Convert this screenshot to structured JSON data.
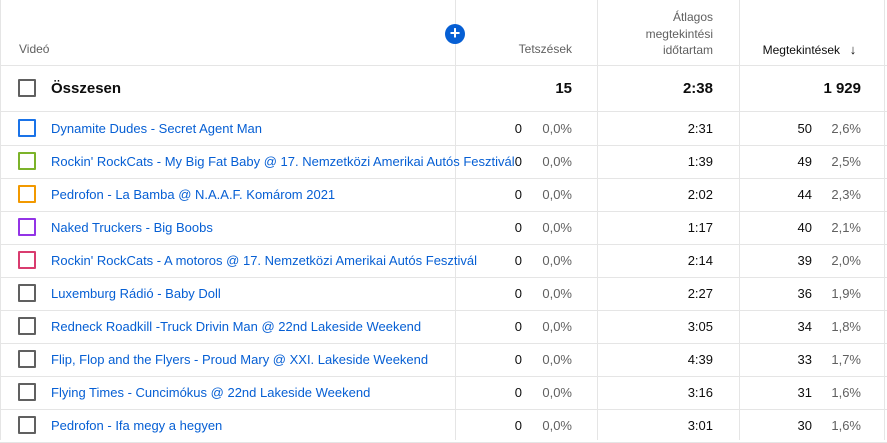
{
  "headers": {
    "video": "Videó",
    "likes": "Tetszések",
    "avg_line1": "Átlagos",
    "avg_line2": "megtekintési",
    "avg_line3": "időtartam",
    "views": "Megtekintések",
    "sort_arrow": "↓",
    "add_icon": "+"
  },
  "total": {
    "label": "Összesen",
    "likes": "15",
    "avg": "2:38",
    "views": "1 929"
  },
  "rows": [
    {
      "title": "Dynamite Dudes - Secret Agent Man",
      "likes": "0",
      "likes_pct": "0,0%",
      "avg": "2:31",
      "views": "50",
      "views_pct": "2,6%",
      "color": "#1a73e8"
    },
    {
      "title": "Rockin' RockCats - My Big Fat Baby @ 17. Nemzetközi Amerikai Autós Fesztivál",
      "likes": "0",
      "likes_pct": "0,0%",
      "avg": "1:39",
      "views": "49",
      "views_pct": "2,5%",
      "color": "#7cb32a"
    },
    {
      "title": "Pedrofon - La Bamba @ N.A.A.F. Komárom 2021",
      "likes": "0",
      "likes_pct": "0,0%",
      "avg": "2:02",
      "views": "44",
      "views_pct": "2,3%",
      "color": "#f29900"
    },
    {
      "title": "Naked Truckers - Big Boobs",
      "likes": "0",
      "likes_pct": "0,0%",
      "avg": "1:17",
      "views": "40",
      "views_pct": "2,1%",
      "color": "#9334e6"
    },
    {
      "title": "Rockin' RockCats - A motoros @ 17. Nemzetközi Amerikai Autós Fesztivál",
      "likes": "0",
      "likes_pct": "0,0%",
      "avg": "2:14",
      "views": "39",
      "views_pct": "2,0%",
      "color": "#d93c6f"
    },
    {
      "title": "Luxemburg Rádió - Baby Doll",
      "likes": "0",
      "likes_pct": "0,0%",
      "avg": "2:27",
      "views": "36",
      "views_pct": "1,9%",
      "color": "#606060"
    },
    {
      "title": "Redneck Roadkill -Truck Drivin Man @ 22nd Lakeside Weekend",
      "likes": "0",
      "likes_pct": "0,0%",
      "avg": "3:05",
      "views": "34",
      "views_pct": "1,8%",
      "color": "#606060"
    },
    {
      "title": "Flip, Flop and the Flyers - Proud Mary @ XXI. Lakeside Weekend",
      "likes": "0",
      "likes_pct": "0,0%",
      "avg": "4:39",
      "views": "33",
      "views_pct": "1,7%",
      "color": "#606060"
    },
    {
      "title": "Flying Times - Cuncimókus @ 22nd Lakeside Weekend",
      "likes": "0",
      "likes_pct": "0,0%",
      "avg": "3:16",
      "views": "31",
      "views_pct": "1,6%",
      "color": "#606060"
    },
    {
      "title": "Pedrofon - Ifa megy a hegyen",
      "likes": "0",
      "likes_pct": "0,0%",
      "avg": "3:01",
      "views": "30",
      "views_pct": "1,6%",
      "color": "#606060"
    }
  ]
}
